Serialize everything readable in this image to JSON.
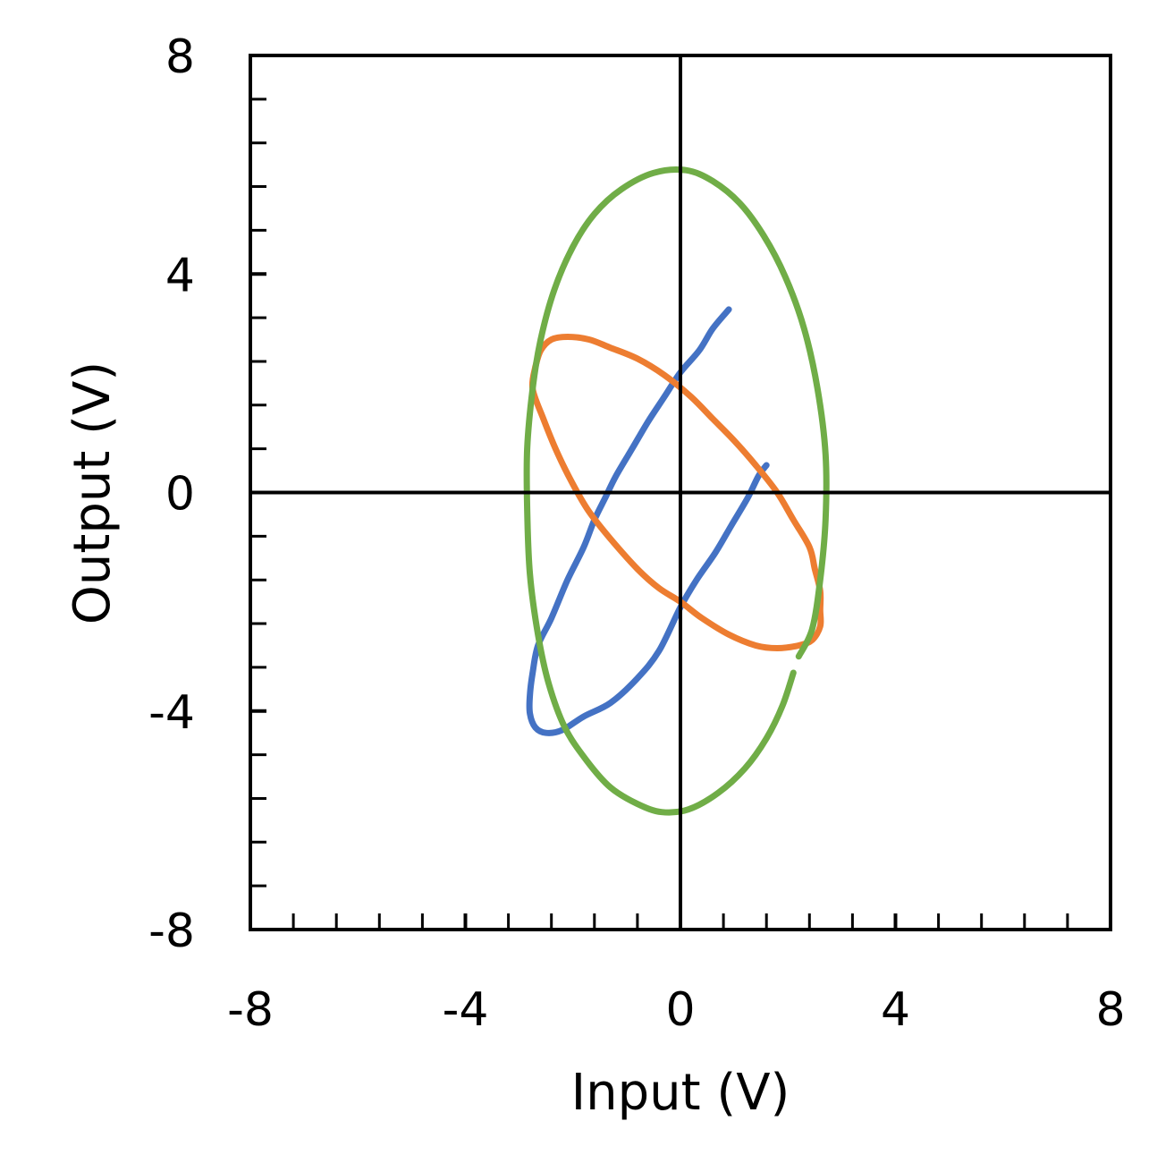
{
  "chart_data": {
    "type": "scatter",
    "title": "",
    "xlabel": "Input (V)",
    "ylabel": "Output (V)",
    "xlim": [
      -8,
      8
    ],
    "ylim": [
      -8,
      8
    ],
    "major_ticks": [
      -8,
      -4,
      0,
      4,
      8
    ],
    "minor_tick_step": 0.8,
    "zero_lines": true,
    "grid": false,
    "legend": "none",
    "series": [
      {
        "color": "#4472C4",
        "shape": "lissajous-line",
        "points": [
          [
            0.9,
            3.35
          ],
          [
            0.6,
            3.0
          ],
          [
            0.35,
            2.6
          ],
          [
            0.0,
            2.2
          ],
          [
            -0.3,
            1.75
          ],
          [
            -0.6,
            1.3
          ],
          [
            -0.9,
            0.8
          ],
          [
            -1.2,
            0.3
          ],
          [
            -1.4,
            -0.1
          ],
          [
            -1.6,
            -0.5
          ],
          [
            -1.8,
            -1.0
          ],
          [
            -2.1,
            -1.6
          ],
          [
            -2.4,
            -2.3
          ],
          [
            -2.65,
            -2.8
          ],
          [
            -2.75,
            -3.3
          ],
          [
            -2.8,
            -3.7
          ],
          [
            -2.8,
            -4.05
          ],
          [
            -2.7,
            -4.3
          ],
          [
            -2.5,
            -4.4
          ],
          [
            -2.2,
            -4.35
          ],
          [
            -1.8,
            -4.1
          ],
          [
            -1.3,
            -3.85
          ],
          [
            -0.8,
            -3.4
          ],
          [
            -0.4,
            -2.9
          ],
          [
            0.0,
            -2.1
          ],
          [
            0.3,
            -1.6
          ],
          [
            0.65,
            -1.1
          ],
          [
            0.95,
            -0.6
          ],
          [
            1.25,
            -0.1
          ],
          [
            1.45,
            0.3
          ],
          [
            1.6,
            0.5
          ]
        ]
      },
      {
        "color": "#ED7D31",
        "shape": "closed-loop",
        "points": [
          [
            -2.7,
            2.3
          ],
          [
            -2.6,
            2.6
          ],
          [
            -2.4,
            2.8
          ],
          [
            -2.1,
            2.85
          ],
          [
            -1.7,
            2.8
          ],
          [
            -1.3,
            2.65
          ],
          [
            -0.8,
            2.45
          ],
          [
            -0.3,
            2.15
          ],
          [
            0.2,
            1.75
          ],
          [
            0.6,
            1.35
          ],
          [
            1.0,
            0.95
          ],
          [
            1.4,
            0.5
          ],
          [
            1.8,
            0.0
          ],
          [
            2.1,
            -0.5
          ],
          [
            2.4,
            -1.0
          ],
          [
            2.5,
            -1.4
          ],
          [
            2.6,
            -1.8
          ],
          [
            2.6,
            -2.15
          ],
          [
            2.6,
            -2.45
          ],
          [
            2.45,
            -2.7
          ],
          [
            2.2,
            -2.8
          ],
          [
            1.8,
            -2.85
          ],
          [
            1.4,
            -2.8
          ],
          [
            0.9,
            -2.6
          ],
          [
            0.4,
            -2.3
          ],
          [
            0.0,
            -2.0
          ],
          [
            -0.4,
            -1.75
          ],
          [
            -0.8,
            -1.4
          ],
          [
            -1.3,
            -0.85
          ],
          [
            -1.7,
            -0.35
          ],
          [
            -2.0,
            0.15
          ],
          [
            -2.3,
            0.75
          ],
          [
            -2.55,
            1.35
          ],
          [
            -2.75,
            1.9
          ],
          [
            -2.7,
            2.3
          ]
        ]
      },
      {
        "color": "#70AD47",
        "shape": "closed-loop",
        "points": [
          [
            2.1,
            -3.3
          ],
          [
            1.9,
            -3.9
          ],
          [
            1.6,
            -4.5
          ],
          [
            1.2,
            -5.05
          ],
          [
            0.7,
            -5.5
          ],
          [
            0.15,
            -5.8
          ],
          [
            -0.35,
            -5.85
          ],
          [
            -0.8,
            -5.7
          ],
          [
            -1.3,
            -5.4
          ],
          [
            -1.75,
            -4.9
          ],
          [
            -2.15,
            -4.3
          ],
          [
            -2.45,
            -3.5
          ],
          [
            -2.65,
            -2.6
          ],
          [
            -2.8,
            -1.5
          ],
          [
            -2.85,
            -0.3
          ],
          [
            -2.85,
            0.8
          ],
          [
            -2.75,
            1.9
          ],
          [
            -2.6,
            2.8
          ],
          [
            -2.35,
            3.7
          ],
          [
            -2.0,
            4.5
          ],
          [
            -1.6,
            5.1
          ],
          [
            -1.1,
            5.55
          ],
          [
            -0.5,
            5.85
          ],
          [
            0.1,
            5.9
          ],
          [
            0.6,
            5.7
          ],
          [
            1.1,
            5.3
          ],
          [
            1.55,
            4.7
          ],
          [
            1.95,
            3.95
          ],
          [
            2.3,
            3.0
          ],
          [
            2.55,
            1.9
          ],
          [
            2.7,
            0.7
          ],
          [
            2.7,
            -0.5
          ],
          [
            2.6,
            -1.6
          ],
          [
            2.45,
            -2.5
          ],
          [
            2.2,
            -3.0
          ]
        ]
      }
    ]
  }
}
